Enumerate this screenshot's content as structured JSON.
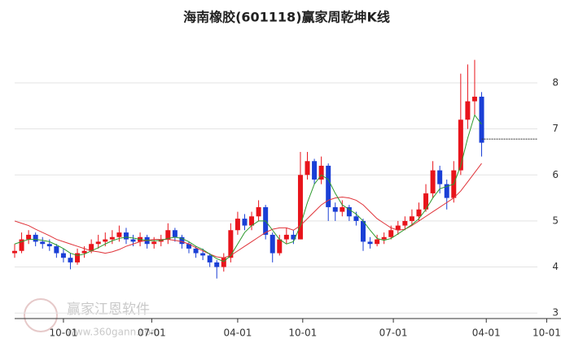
{
  "chart_data": {
    "type": "candlestick",
    "title": "海南橡胶(601118)赢家周乾坤K线",
    "watermark": "赢家江恩软件",
    "watermark_url": "www.360gann.com",
    "up_color": "#e8141b",
    "down_color": "#1a3fd6",
    "ma_colors": [
      "#e0343a",
      "#2e9a2e"
    ],
    "x": [
      0,
      3,
      6,
      9,
      12,
      15,
      18,
      21,
      24,
      27,
      30,
      33,
      36,
      39,
      42,
      45,
      48,
      51,
      54,
      57,
      60,
      63,
      66,
      69,
      72,
      75,
      78,
      81,
      84,
      87,
      90,
      93,
      96,
      99,
      102,
      105,
      108,
      111,
      114,
      117,
      120,
      123,
      126,
      129,
      132,
      135,
      138,
      141,
      144,
      147,
      150,
      153,
      156,
      159,
      162,
      165,
      168,
      171,
      174,
      177,
      180,
      183,
      186,
      189,
      192,
      195,
      198,
      201
    ],
    "open": [
      4.3,
      4.35,
      4.6,
      4.7,
      4.55,
      4.5,
      4.45,
      4.3,
      4.2,
      4.1,
      4.3,
      4.35,
      4.5,
      4.55,
      4.6,
      4.65,
      4.75,
      4.6,
      4.55,
      4.65,
      4.5,
      4.55,
      4.6,
      4.8,
      4.65,
      4.5,
      4.4,
      4.3,
      4.25,
      4.1,
      4.0,
      4.2,
      4.8,
      5.05,
      4.9,
      5.1,
      5.3,
      4.7,
      4.3,
      4.6,
      4.7,
      4.6,
      6.0,
      6.3,
      5.9,
      6.2,
      5.3,
      5.2,
      5.3,
      5.1,
      5.0,
      4.55,
      4.5,
      4.6,
      4.65,
      4.8,
      4.9,
      5.0,
      5.1,
      5.25,
      5.6,
      6.1,
      5.8,
      5.5,
      6.1,
      7.2,
      7.6,
      7.7
    ],
    "high": [
      4.5,
      4.75,
      4.8,
      4.75,
      4.65,
      4.6,
      4.5,
      4.4,
      4.3,
      4.4,
      4.45,
      4.6,
      4.7,
      4.75,
      4.8,
      4.9,
      4.85,
      4.7,
      4.75,
      4.7,
      4.65,
      4.7,
      4.95,
      4.85,
      4.7,
      4.55,
      4.45,
      4.4,
      4.3,
      4.15,
      4.3,
      4.95,
      5.2,
      5.15,
      5.2,
      5.45,
      5.35,
      4.75,
      4.7,
      4.85,
      4.8,
      6.5,
      6.5,
      6.35,
      6.4,
      6.25,
      5.4,
      5.45,
      5.35,
      5.2,
      5.05,
      4.65,
      4.7,
      4.75,
      4.9,
      5.0,
      5.1,
      5.25,
      5.4,
      5.8,
      6.3,
      6.2,
      5.9,
      6.3,
      8.2,
      8.4,
      8.5,
      7.8
    ],
    "low": [
      4.2,
      4.3,
      4.5,
      4.45,
      4.4,
      4.35,
      4.2,
      4.1,
      3.95,
      4.05,
      4.2,
      4.3,
      4.4,
      4.45,
      4.5,
      4.55,
      4.5,
      4.45,
      4.45,
      4.4,
      4.4,
      4.45,
      4.5,
      4.55,
      4.4,
      4.3,
      4.2,
      4.15,
      4.0,
      3.75,
      3.9,
      4.1,
      4.7,
      4.8,
      4.8,
      5.0,
      4.6,
      4.1,
      4.25,
      4.5,
      4.5,
      4.6,
      5.9,
      5.8,
      5.8,
      5.0,
      5.0,
      5.1,
      5.0,
      4.9,
      4.35,
      4.4,
      4.45,
      4.5,
      4.6,
      4.7,
      4.8,
      4.9,
      5.0,
      5.2,
      5.5,
      5.6,
      5.25,
      5.4,
      6.0,
      7.0,
      7.3,
      6.4
    ],
    "close": [
      4.35,
      4.6,
      4.7,
      4.55,
      4.5,
      4.45,
      4.3,
      4.2,
      4.1,
      4.3,
      4.35,
      4.5,
      4.55,
      4.6,
      4.65,
      4.75,
      4.6,
      4.55,
      4.65,
      4.5,
      4.55,
      4.6,
      4.8,
      4.65,
      4.5,
      4.4,
      4.3,
      4.25,
      4.1,
      4.0,
      4.2,
      4.8,
      5.05,
      4.9,
      5.1,
      5.3,
      4.7,
      4.3,
      4.6,
      4.7,
      4.6,
      6.0,
      6.3,
      5.9,
      6.2,
      5.3,
      5.2,
      5.3,
      5.1,
      5.0,
      4.55,
      4.5,
      4.6,
      4.65,
      4.8,
      4.9,
      5.0,
      5.1,
      5.25,
      5.6,
      6.1,
      5.8,
      5.5,
      6.1,
      7.2,
      7.6,
      7.7,
      6.7
    ],
    "ma_long": [
      5.0,
      4.95,
      4.9,
      4.82,
      4.75,
      4.68,
      4.6,
      4.55,
      4.5,
      4.45,
      4.4,
      4.35,
      4.33,
      4.3,
      4.33,
      4.38,
      4.45,
      4.5,
      4.55,
      4.58,
      4.6,
      4.6,
      4.6,
      4.58,
      4.55,
      4.5,
      4.42,
      4.35,
      4.28,
      4.22,
      4.2,
      4.25,
      4.35,
      4.45,
      4.55,
      4.65,
      4.75,
      4.82,
      4.85,
      4.85,
      4.8,
      4.9,
      5.05,
      5.2,
      5.35,
      5.45,
      5.5,
      5.52,
      5.5,
      5.45,
      5.35,
      5.2,
      5.05,
      4.95,
      4.85,
      4.8,
      4.82,
      4.9,
      5.0,
      5.1,
      5.2,
      5.3,
      5.4,
      5.5,
      5.65,
      5.85,
      6.05,
      6.25
    ],
    "ma_short": [
      4.5,
      4.55,
      4.6,
      4.6,
      4.58,
      4.55,
      4.48,
      4.4,
      4.3,
      4.25,
      4.28,
      4.35,
      4.42,
      4.5,
      4.57,
      4.62,
      4.65,
      4.63,
      4.6,
      4.58,
      4.57,
      4.58,
      4.62,
      4.65,
      4.62,
      4.55,
      4.45,
      4.38,
      4.28,
      4.18,
      4.12,
      4.25,
      4.5,
      4.75,
      4.9,
      5.0,
      5.0,
      4.8,
      4.6,
      4.5,
      4.55,
      4.9,
      5.4,
      5.8,
      6.0,
      5.9,
      5.6,
      5.35,
      5.25,
      5.15,
      5.0,
      4.8,
      4.62,
      4.58,
      4.62,
      4.72,
      4.82,
      4.92,
      5.05,
      5.25,
      5.5,
      5.7,
      5.75,
      5.8,
      6.2,
      6.8,
      7.3,
      7.1
    ],
    "reference_line": 6.78,
    "xlim": [
      0,
      225
    ],
    "xticks": [
      {
        "value": 21,
        "label": "10-01"
      },
      {
        "value": 59,
        "label": "07-01"
      },
      {
        "value": 96,
        "label": "04-01"
      },
      {
        "value": 124,
        "label": "10-01"
      },
      {
        "value": 163,
        "label": "07-01"
      },
      {
        "value": 203,
        "label": "04-01"
      },
      {
        "value": 229,
        "label": "10-01"
      }
    ],
    "ylim": [
      2.88,
      8.9
    ],
    "yticks": [
      3,
      4,
      5,
      6,
      7,
      8
    ],
    "grid": true
  }
}
